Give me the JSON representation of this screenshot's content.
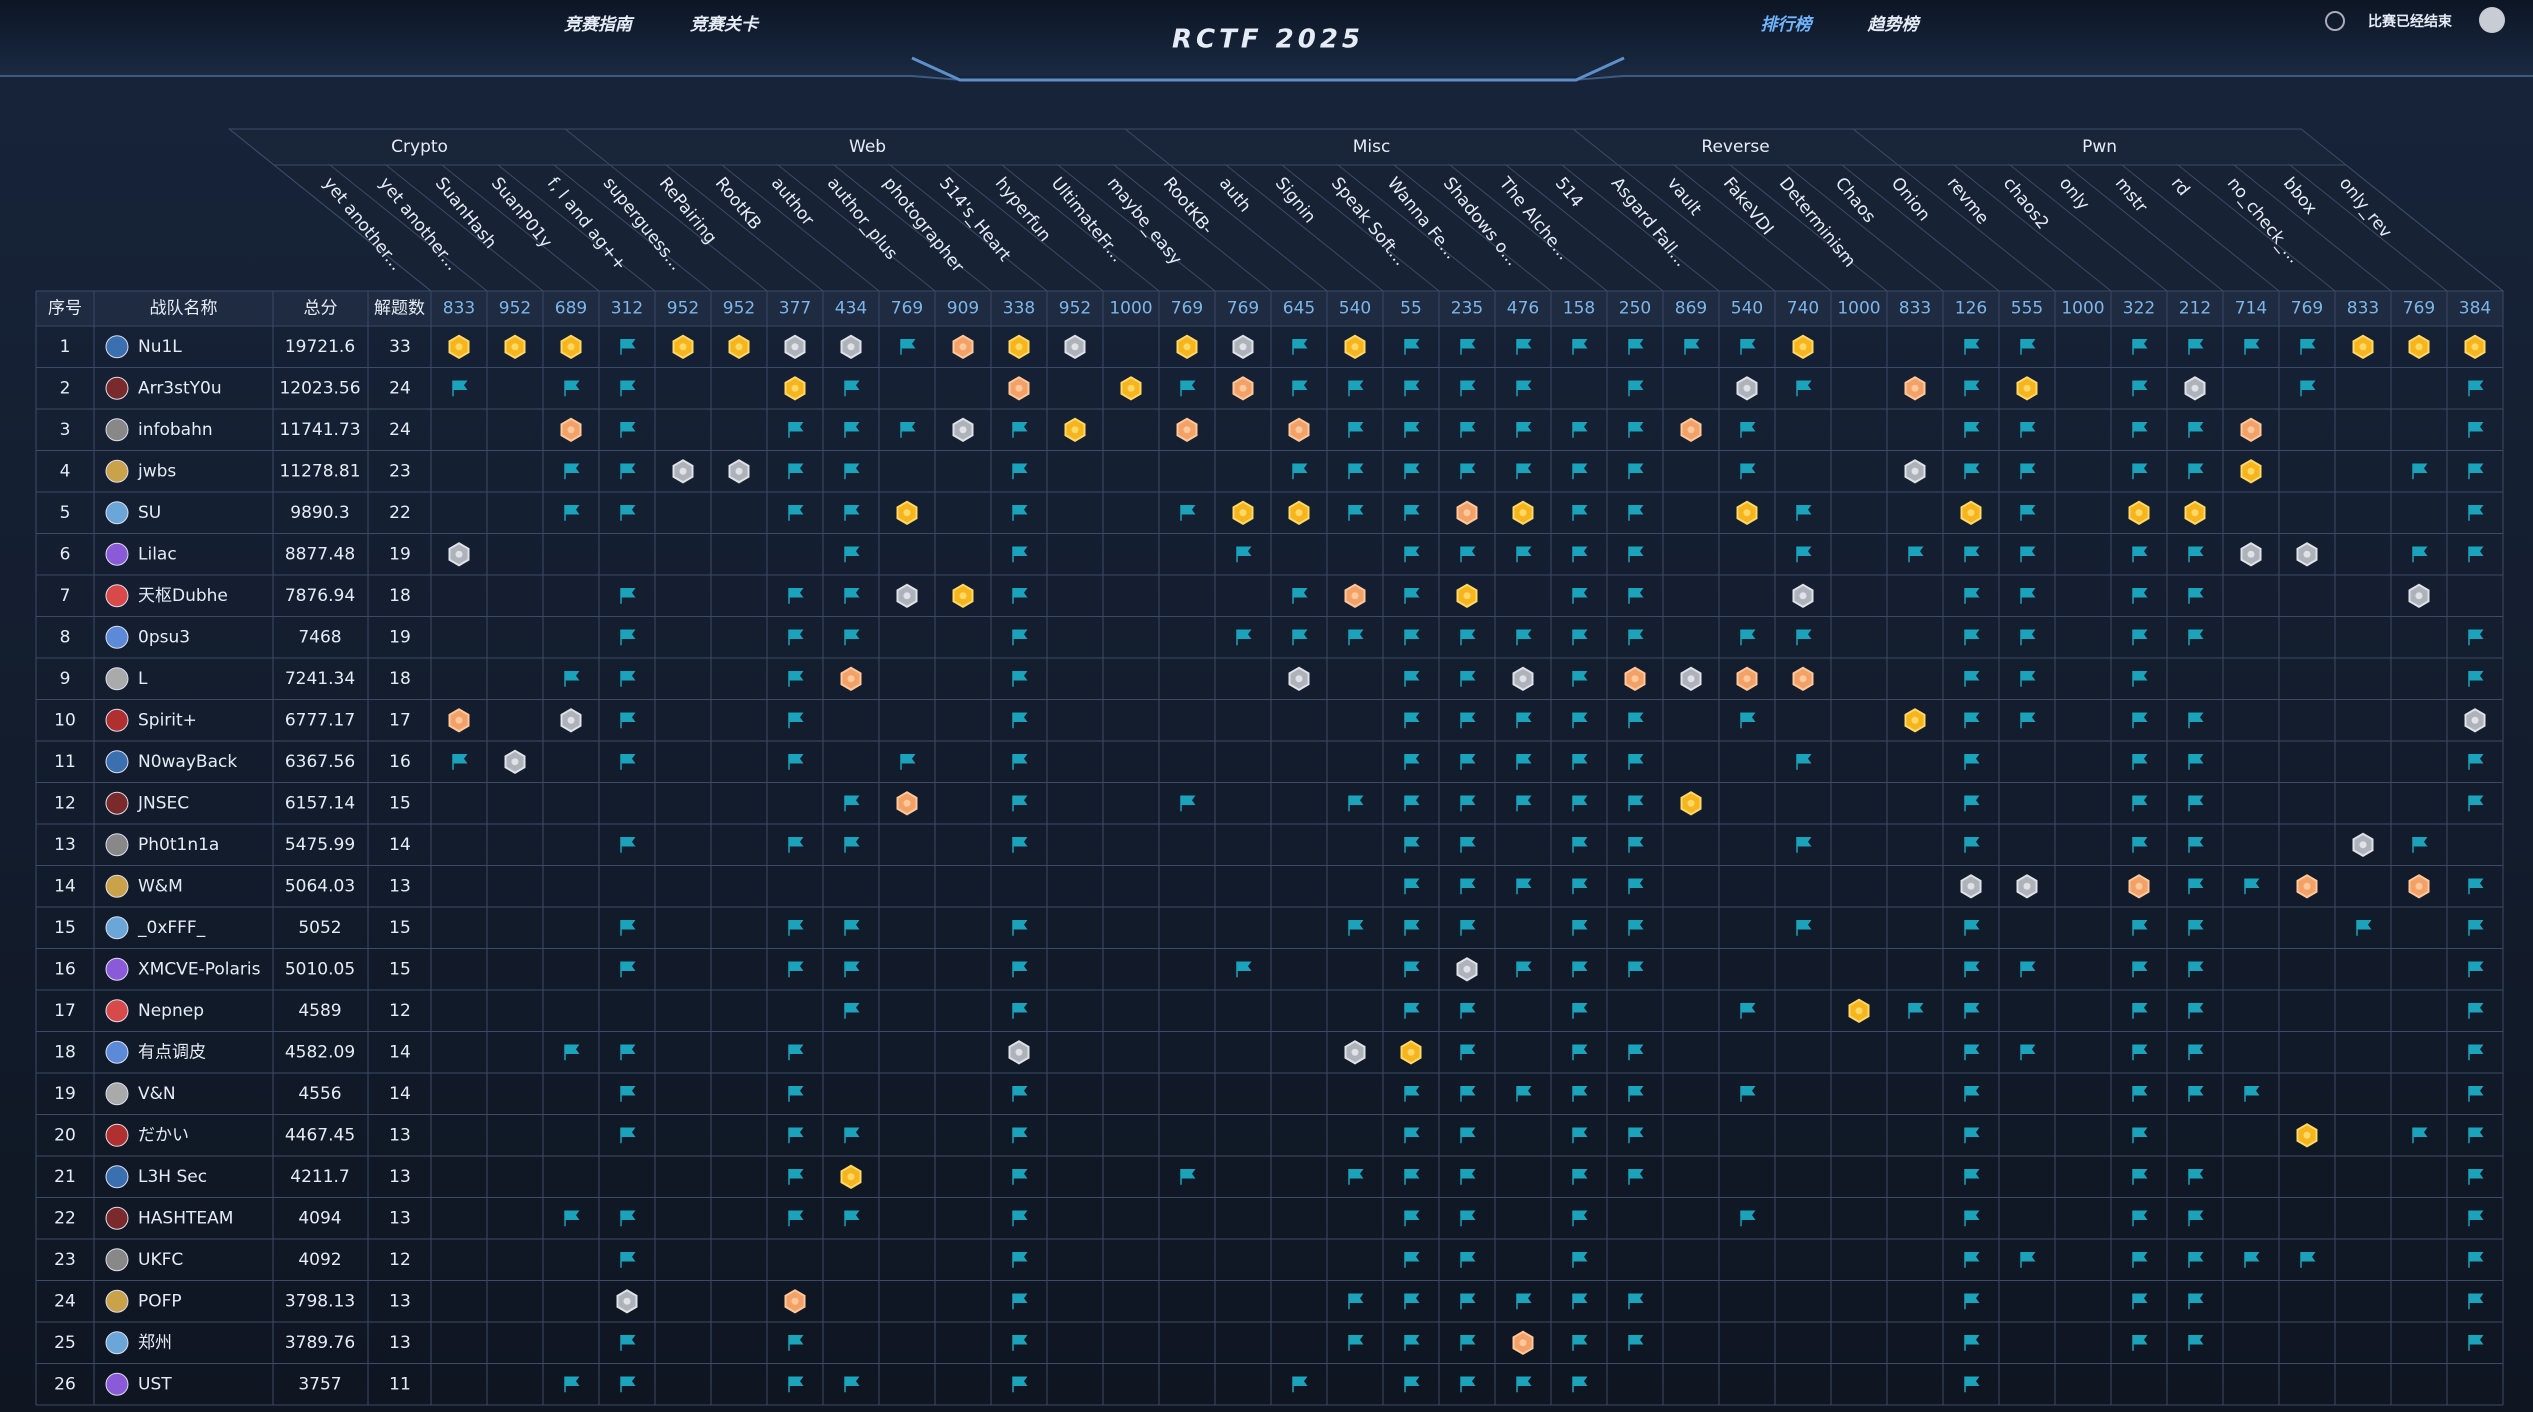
{
  "nav": {
    "left": [
      "竞赛指南",
      "竞赛关卡"
    ],
    "title": "RCTF 2025",
    "right": [
      "排行榜",
      "趋势榜"
    ],
    "status": "比赛已经结束"
  },
  "table": {
    "headers": [
      "序号",
      "战队名称",
      "总分",
      "解题数"
    ],
    "categories": [
      {
        "name": "Crypto",
        "challenges": [
          {
            "name": "yet another...",
            "points": 833
          },
          {
            "name": "yet another...",
            "points": 952
          },
          {
            "name": "SuanHash",
            "points": 689
          },
          {
            "name": "SuanP01y",
            "points": 312
          },
          {
            "name": "f, l and ag++",
            "points": 952
          },
          {
            "name": "superguess...",
            "points": 952
          }
        ]
      },
      {
        "name": "Web",
        "challenges": [
          {
            "name": "RePairing",
            "points": 377
          },
          {
            "name": "RootKB",
            "points": 434
          },
          {
            "name": "author",
            "points": 769
          },
          {
            "name": "author_plus",
            "points": 909
          },
          {
            "name": "photographer",
            "points": 338
          },
          {
            "name": "514's_Heart",
            "points": 952
          },
          {
            "name": "hyperfun",
            "points": 1000
          },
          {
            "name": "UltimateFr...",
            "points": 769
          },
          {
            "name": "maybe_easy",
            "points": 769
          },
          {
            "name": "RootKB-",
            "points": 645
          }
        ]
      },
      {
        "name": "Misc",
        "challenges": [
          {
            "name": "auth",
            "points": 540
          },
          {
            "name": "Signin",
            "points": 55
          },
          {
            "name": "Speak Soft...",
            "points": 235
          },
          {
            "name": "Wanna Fe...",
            "points": 476
          },
          {
            "name": "Shadows o...",
            "points": 158
          },
          {
            "name": "The Alche...",
            "points": 250
          },
          {
            "name": "514",
            "points": 869
          },
          {
            "name": "Asgard Fall...",
            "points": 540
          }
        ]
      },
      {
        "name": "Reverse",
        "challenges": [
          {
            "name": "vault",
            "points": 740
          },
          {
            "name": "FakeVDI",
            "points": 1000
          },
          {
            "name": "Determinism",
            "points": 833
          },
          {
            "name": "Chaos",
            "points": 126
          },
          {
            "name": "Onion",
            "points": 555
          }
        ]
      },
      {
        "name": "Pwn",
        "challenges": [
          {
            "name": "revme",
            "points": 1000
          },
          {
            "name": "chaos2",
            "points": 322
          },
          {
            "name": "only",
            "points": 212
          },
          {
            "name": "mstr",
            "points": 714
          },
          {
            "name": "rd",
            "points": 769
          },
          {
            "name": "no_check_...",
            "points": 833
          },
          {
            "name": "bbox",
            "points": 769
          },
          {
            "name": "only_rev",
            "points": 384
          }
        ]
      }
    ],
    "rows": [
      {
        "rank": 1,
        "team": "Nu1L",
        "score": 19721.6,
        "solved": 33,
        "solves": "111f1122f312-12f1fffffff1--ff-ffff111"
      },
      {
        "rank": 2,
        "team": "Arr3stY0u",
        "score": 12023.56,
        "solved": 24,
        "solves": "f-ff--1f--3-1f3fffff-f-2f-3f1-f2-f--f"
      },
      {
        "rank": 3,
        "team": "infobahn",
        "score": 11741.73,
        "solved": 24,
        "solves": "--3f--fff2f1-3-3ffffff3f---ff-ff3---f"
      },
      {
        "rank": 4,
        "team": "jwbs",
        "score": 11278.81,
        "solved": 23,
        "solves": "--ff22ff--f----fffffff-f--2ff-ff1--ff"
      },
      {
        "rank": 5,
        "team": "SU",
        "score": 9890.3,
        "solved": 22,
        "solves": "--ff--ff1-f--f11ff31ff-1f--1f-11----f"
      },
      {
        "rank": 6,
        "team": "Lilac",
        "score": 8877.48,
        "solved": 19,
        "solves": "2------f--f---f--fffff--f-fff-ff22-ff"
      },
      {
        "rank": 7,
        "team": "天枢Dubhe",
        "score": 7876.94,
        "solved": 18,
        "solves": "---f--ff21f----f3f1-ff--2--ff-ff---2-"
      },
      {
        "rank": 8,
        "team": "0psu3",
        "score": 7468,
        "solved": 19,
        "solves": "---f--ff--f---ffffffff-ff--ff-ff----f"
      },
      {
        "rank": 9,
        "team": "L",
        "score": 7241.34,
        "solved": 18,
        "solves": "--ff--f3--f----2-ff2f3233--ff-f-----f"
      },
      {
        "rank": 10,
        "team": "Spirit+",
        "score": 6777.17,
        "solved": 17,
        "solves": "3-2f--f---f------fffff-f--1ff-ff----2"
      },
      {
        "rank": 11,
        "team": "N0wayBack",
        "score": 6367.56,
        "solved": 16,
        "solves": "f2-f--f-f-f------fffff--f--f--ff----f"
      },
      {
        "rank": 12,
        "team": "JNSEC",
        "score": 6157.14,
        "solved": 15,
        "solves": "-------f3-f--f--ffffff1----f--ff----f"
      },
      {
        "rank": 13,
        "team": "Ph0t1n1a",
        "score": 5475.99,
        "solved": 14,
        "solves": "---f--ff--f------ff-ff--f--f--ff--2f-"
      },
      {
        "rank": 14,
        "team": "W&M",
        "score": 5064.03,
        "solved": 13,
        "solves": "-----------------fffff-----22-3ff3-3f"
      },
      {
        "rank": 15,
        "team": "_0xFFF_",
        "score": 5052,
        "solved": 15,
        "solves": "---f--ff--f-----fff-ff--f--f--ff--f-f"
      },
      {
        "rank": 16,
        "team": "XMCVE-Polaris",
        "score": 5010.05,
        "solved": 15,
        "solves": "---f--ff--f---f--f2fff-----ff-ff----f"
      },
      {
        "rank": 17,
        "team": "Nepnep",
        "score": 4589,
        "solved": 12,
        "solves": "-------f--f------ff-f--f-1ff--ff----f"
      },
      {
        "rank": 18,
        "team": "有点调皮",
        "score": 4582.09,
        "solved": 14,
        "solves": "--ff--f---2-----21f-ff-----ff-ff----f"
      },
      {
        "rank": 19,
        "team": "V&N",
        "score": 4556,
        "solved": 14,
        "solves": "---f--f---f------fffff-f---f--fff---f"
      },
      {
        "rank": 20,
        "team": "だかい",
        "score": 4467.45,
        "solved": 13,
        "solves": "---f--ff--f------ff-ff-----f--f--1-ff"
      },
      {
        "rank": 21,
        "team": "L3H Sec",
        "score": 4211.7,
        "solved": 13,
        "solves": "------f1--f--f--fff-ff-----f--ff----f"
      },
      {
        "rank": 22,
        "team": "HASHTEAM",
        "score": 4094,
        "solved": 13,
        "solves": "--ff--ff--f------ff-f--f---f--ff----f"
      },
      {
        "rank": 23,
        "team": "UKFC",
        "score": 4092,
        "solved": 12,
        "solves": "---f------f------ff-f------ff-ffff--f"
      },
      {
        "rank": 24,
        "team": "POFP",
        "score": 3798.13,
        "solved": 13,
        "solves": "---2--3---f-----ffffff-----f--ff----f"
      },
      {
        "rank": 25,
        "team": "郑州",
        "score": 3789.76,
        "solved": 13,
        "solves": "---f--f---f-----fff3ff-----f--ff----f"
      },
      {
        "rank": 26,
        "team": "UST",
        "score": 3757,
        "solved": 11,
        "solves": "--ff--ff--f----f-ffff------f---------"
      }
    ]
  }
}
